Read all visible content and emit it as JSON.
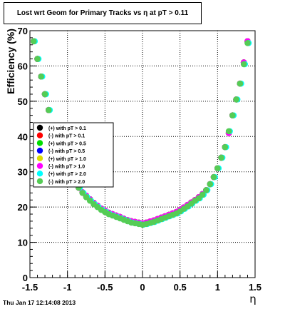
{
  "chart_data": {
    "type": "scatter",
    "title": "Lost wrt Geom for Primary Tracks vs η at pT > 0.11",
    "xlabel": "η",
    "ylabel": "Efficiency (%)",
    "xlim": [
      -1.5,
      1.5
    ],
    "ylim": [
      0,
      70
    ],
    "x_ticks": [
      "-1.5",
      "-1",
      "-0.5",
      "0",
      "0.5",
      "1",
      "1.5"
    ],
    "y_ticks": [
      "0",
      "10",
      "20",
      "30",
      "40",
      "50",
      "60",
      "70"
    ],
    "grid": true,
    "legend_position": "center-left",
    "timestamp": "Thu Jan 17 12:14:08 2013",
    "series": [
      {
        "name": "(+) with pT > 0.1",
        "color": "#000000"
      },
      {
        "name": "(-) with pT > 0.1",
        "color": "#ff0000"
      },
      {
        "name": "(+) with pT > 0.5",
        "color": "#00dd00"
      },
      {
        "name": "(-) with pT > 0.5",
        "color": "#0000ff"
      },
      {
        "name": "(+) with pT > 1.0",
        "color": "#dddd00"
      },
      {
        "name": "(-) with pT > 1.0",
        "color": "#ff00ff"
      },
      {
        "name": "(+) with pT > 2.0",
        "color": "#00ffff"
      },
      {
        "name": "(-) with pT > 2.0",
        "color": "#55cc55"
      }
    ],
    "x": [
      -1.45,
      -1.4,
      -1.35,
      -1.3,
      -1.25,
      -0.85,
      -0.8,
      -0.75,
      -0.7,
      -0.65,
      -0.6,
      -0.55,
      -0.5,
      -0.45,
      -0.4,
      -0.35,
      -0.3,
      -0.25,
      -0.2,
      -0.15,
      -0.1,
      -0.05,
      0.0,
      0.05,
      0.1,
      0.15,
      0.2,
      0.25,
      0.3,
      0.35,
      0.4,
      0.45,
      0.5,
      0.55,
      0.6,
      0.65,
      0.7,
      0.75,
      0.8,
      0.85,
      0.9,
      0.95,
      1.0,
      1.05,
      1.1,
      1.15,
      1.2,
      1.25,
      1.3,
      1.35,
      1.4
    ],
    "y_high_pt": [
      67.0,
      62.0,
      57.0,
      52.0,
      47.5,
      25.5,
      24.0,
      22.8,
      21.8,
      20.8,
      20.0,
      19.2,
      18.6,
      18.0,
      17.6,
      17.2,
      16.8,
      16.4,
      16.0,
      15.6,
      15.4,
      15.2,
      15.0,
      15.2,
      15.5,
      15.8,
      16.2,
      16.6,
      17.0,
      17.4,
      17.8,
      18.2,
      18.8,
      19.5,
      20.2,
      21.0,
      21.8,
      22.5,
      23.5,
      24.8,
      26.5,
      28.5,
      31.0,
      34.0,
      37.0,
      41.5,
      46.0,
      50.5,
      55.0,
      60.5,
      66.5
    ],
    "y_low_pt": [
      67.0,
      62.0,
      57.0,
      52.0,
      47.5,
      25.5,
      24.2,
      23.2,
      22.2,
      21.2,
      20.4,
      19.6,
      19.0,
      18.4,
      18.0,
      17.6,
      17.2,
      16.7,
      16.3,
      16.0,
      15.8,
      15.6,
      15.4,
      15.6,
      15.9,
      16.2,
      16.6,
      17.0,
      17.4,
      17.8,
      18.2,
      18.6,
      19.2,
      19.9,
      20.6,
      21.3,
      22.0,
      22.8,
      23.7,
      24.8,
      26.5,
      28.5,
      31.0,
      34.0,
      37.0,
      41.0,
      46.0,
      50.5,
      55.0,
      61.0,
      67.0
    ]
  }
}
